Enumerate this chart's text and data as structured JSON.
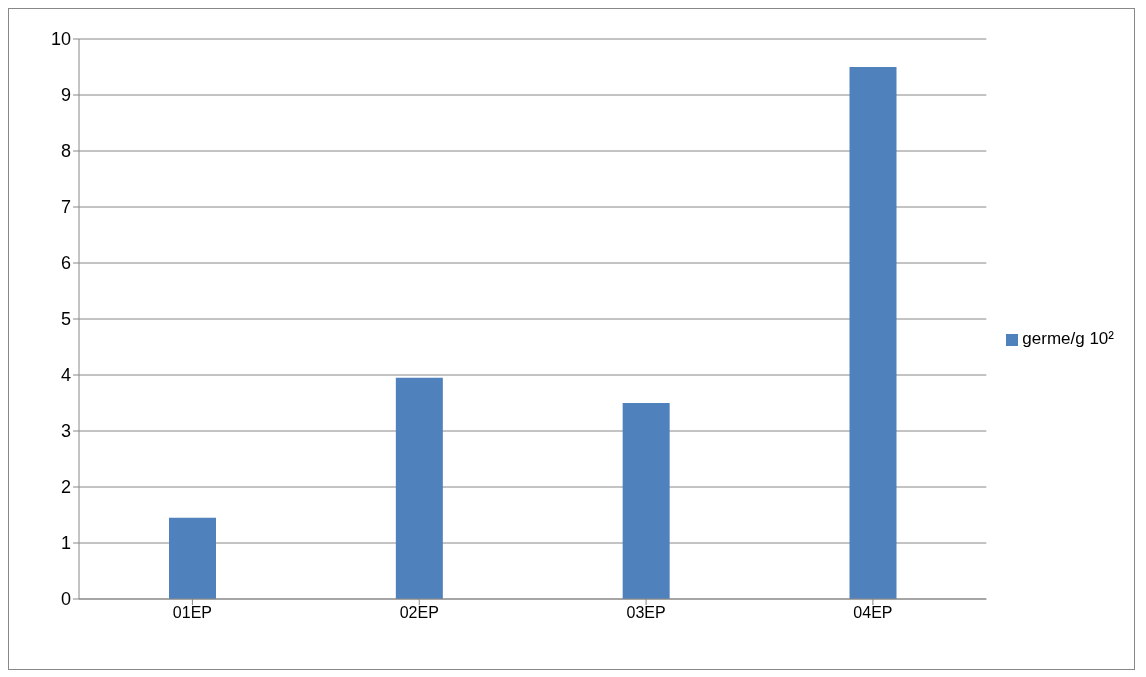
{
  "chart_data": {
    "type": "bar",
    "categories": [
      "01EP",
      "02EP",
      "03EP",
      "04EP"
    ],
    "series": [
      {
        "name": "germe/g 10²",
        "color": "#4f81bd",
        "values": [
          1.45,
          3.95,
          3.5,
          9.5
        ]
      }
    ],
    "ylim": [
      0,
      10
    ],
    "yticks": [
      0,
      1,
      2,
      3,
      4,
      5,
      6,
      7,
      8,
      9,
      10
    ],
    "grid": "y",
    "legend": "right"
  }
}
